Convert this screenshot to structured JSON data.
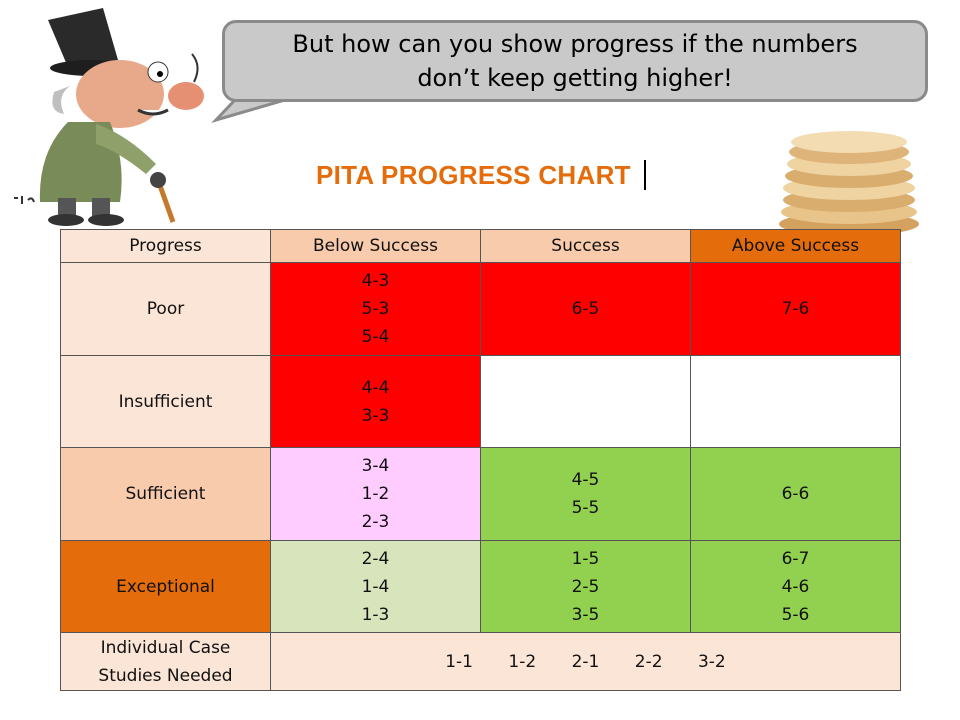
{
  "bubble": {
    "line1": "But how can you show progress if the numbers",
    "line2": "don’t keep getting higher!"
  },
  "title": "PITA PROGRESS CHART",
  "colors": {
    "title": "#e46c0a",
    "red": "#ff0000",
    "green": "#92d050",
    "pink": "#ffccff"
  },
  "table": {
    "headers": [
      "Progress",
      "Below Success",
      "Success",
      "Above Success"
    ],
    "rows": {
      "poor": {
        "label": "Poor",
        "below": [
          "4-3",
          "5-3",
          "5-4"
        ],
        "success": [
          "6-5"
        ],
        "above": [
          "7-6"
        ]
      },
      "insufficient": {
        "label": "Insufficient",
        "below": [
          "4-4",
          "3-3"
        ]
      },
      "sufficient": {
        "label": "Sufficient",
        "below": [
          "3-4",
          "1-2",
          "2-3"
        ],
        "success": [
          "4-5",
          "5-5"
        ],
        "above": [
          "6-6"
        ]
      },
      "exceptional": {
        "label": "Exceptional",
        "below": [
          "2-4",
          "1-4",
          "1-3"
        ],
        "success": [
          "1-5",
          "2-5",
          "3-5"
        ],
        "above": [
          "6-7",
          "4-6",
          "5-6"
        ]
      }
    },
    "individual": {
      "label_line1": "Individual Case",
      "label_line2": "Studies Needed",
      "cases": [
        "1-1",
        "1-2",
        "2-1",
        "2-2",
        "3-2"
      ]
    }
  }
}
